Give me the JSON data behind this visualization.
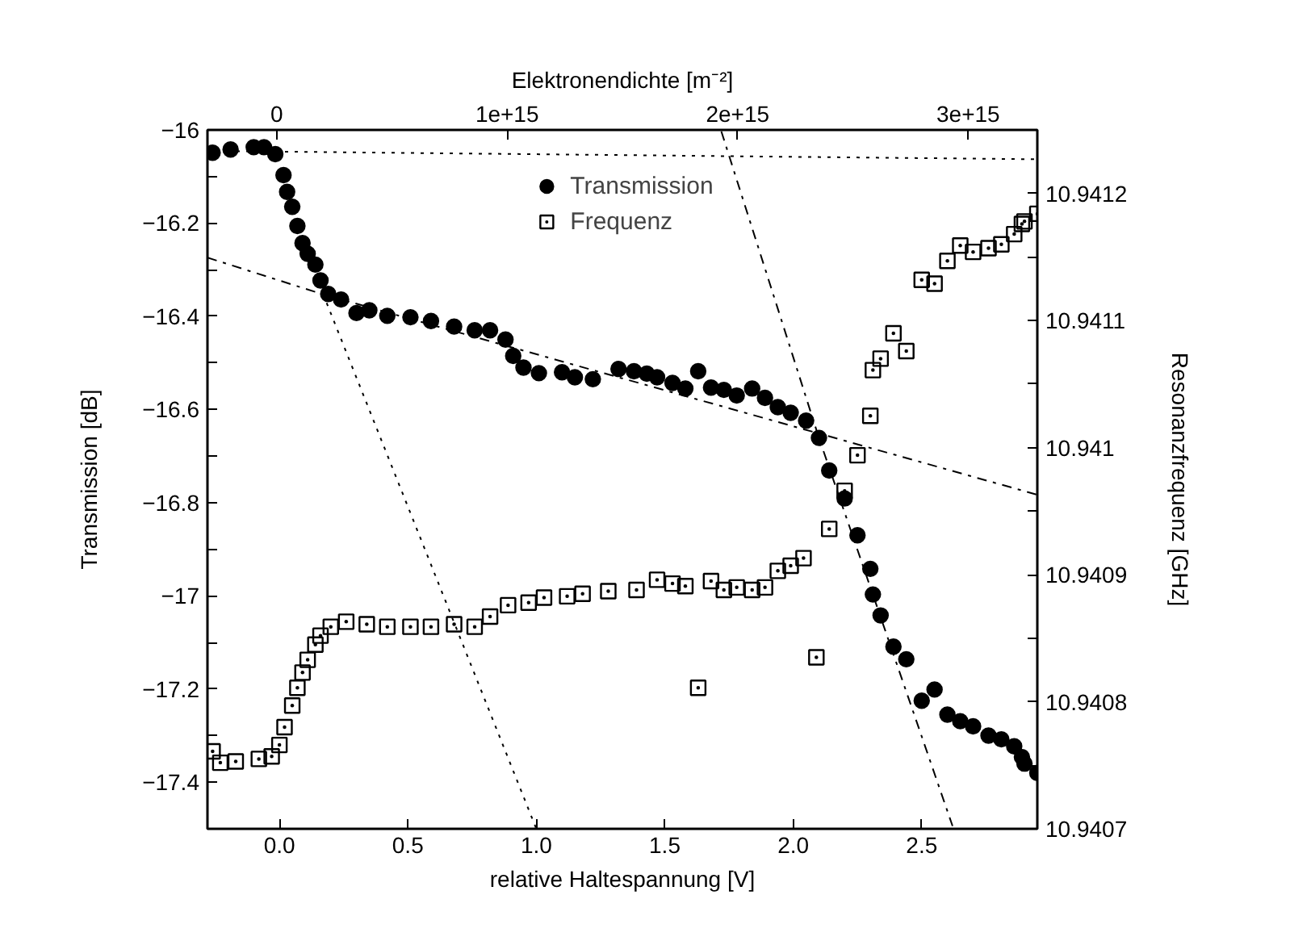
{
  "chart_data": {
    "type": "scatter",
    "xlabel": "relative Haltespannung [V]",
    "ylabel": "Transmission [dB]",
    "y2label": "Resonanzfrequenz [GHz]",
    "x2label": "Elektronendichte [m⁻²]",
    "xlim": [
      -0.28,
      2.95
    ],
    "xticks": [
      {
        "value": 0,
        "label": "0.0"
      },
      {
        "value": 0.5,
        "label": "0.5"
      },
      {
        "value": 1,
        "label": "1.0"
      },
      {
        "value": 1.5,
        "label": "1.5"
      },
      {
        "value": 2,
        "label": "2.0"
      },
      {
        "value": 2.5,
        "label": "2.5"
      }
    ],
    "x2lim": [
      -300000000000000.0,
      3300000000000000.0
    ],
    "x2ticks": [
      {
        "value": 0,
        "label": "0"
      },
      {
        "value": 1000000000000000.0,
        "label": "1e+15"
      },
      {
        "value": 2000000000000000.0,
        "label": "2e+15"
      },
      {
        "value": 3000000000000000.0,
        "label": "3e+15"
      }
    ],
    "ylim": [
      -17.5,
      -16
    ],
    "yticks": [
      {
        "value": -16,
        "label": "−16"
      },
      {
        "value": -16.1,
        "label": null
      },
      {
        "value": -16.2,
        "label": "−16.2"
      },
      {
        "value": -16.3,
        "label": null
      },
      {
        "value": -16.4,
        "label": "−16.4"
      },
      {
        "value": -16.5,
        "label": null
      },
      {
        "value": -16.6,
        "label": "−16.6"
      },
      {
        "value": -16.7,
        "label": null
      },
      {
        "value": -16.8,
        "label": "−16.8"
      },
      {
        "value": -16.9,
        "label": null
      },
      {
        "value": -17,
        "label": "−17"
      },
      {
        "value": -17.1,
        "label": null
      },
      {
        "value": -17.2,
        "label": "−17.2"
      },
      {
        "value": -17.3,
        "label": null
      },
      {
        "value": -17.4,
        "label": "−17.4"
      }
    ],
    "y2lim": [
      10.9407,
      10.94125
    ],
    "y2ticks": [
      10.9407,
      {
        "value": 10.94075,
        "label": null
      },
      10.9408,
      {
        "value": 10.94085,
        "label": null
      },
      10.9409,
      {
        "value": 10.94095,
        "label": null
      },
      10.941,
      {
        "value": 10.94105,
        "label": null
      },
      10.9411,
      {
        "value": 10.94115,
        "label": null
      },
      10.9412
    ],
    "legend": "top",
    "series": [
      {
        "name": "Transmission",
        "marker": "circle",
        "color": "#000000",
        "x": [
          -0.26,
          -0.19,
          -0.1,
          -0.06,
          -0.016,
          0.016,
          0.03,
          0.05,
          0.07,
          0.09,
          0.11,
          0.14,
          0.16,
          0.19,
          0.24,
          0.3,
          0.35,
          0.42,
          0.51,
          0.59,
          0.68,
          0.76,
          0.82,
          0.88,
          0.91,
          0.95,
          1.01,
          1.1,
          1.15,
          1.22,
          1.32,
          1.38,
          1.43,
          1.47,
          1.53,
          1.58,
          1.63,
          1.68,
          1.73,
          1.78,
          1.84,
          1.89,
          1.94,
          1.99,
          2.05,
          2.1,
          2.14,
          2.2,
          2.25,
          2.3,
          2.31,
          2.34,
          2.39,
          2.44,
          2.5,
          2.55,
          2.6,
          2.65,
          2.7,
          2.76,
          2.81,
          2.86,
          2.89,
          2.9,
          2.95
        ],
        "values": [
          -16.049,
          -16.042,
          -16.037,
          -16.037,
          -16.052,
          -16.097,
          -16.133,
          -16.165,
          -16.206,
          -16.243,
          -16.266,
          -16.289,
          -16.323,
          -16.352,
          -16.364,
          -16.393,
          -16.387,
          -16.399,
          -16.402,
          -16.41,
          -16.422,
          -16.43,
          -16.43,
          -16.45,
          -16.485,
          -16.51,
          -16.522,
          -16.52,
          -16.531,
          -16.535,
          -16.513,
          -16.518,
          -16.523,
          -16.531,
          -16.543,
          -16.555,
          -16.518,
          -16.553,
          -16.558,
          -16.57,
          -16.555,
          -16.575,
          -16.595,
          -16.607,
          -16.624,
          -16.661,
          -16.731,
          -16.791,
          -16.87,
          -16.942,
          -16.997,
          -17.042,
          -17.109,
          -17.136,
          -17.225,
          -17.201,
          -17.255,
          -17.269,
          -17.28,
          -17.3,
          -17.308,
          -17.323,
          -17.346,
          -17.36,
          -17.38
        ]
      },
      {
        "name": "Frequenz",
        "marker": "square",
        "axis": "y2",
        "color": "#000000",
        "x": [
          -0.26,
          -0.23,
          -0.17,
          -0.08,
          -0.03,
          0.0,
          0.02,
          0.05,
          0.07,
          0.09,
          0.11,
          0.14,
          0.16,
          0.2,
          0.26,
          0.34,
          0.42,
          0.51,
          0.59,
          0.68,
          0.76,
          0.82,
          0.89,
          0.97,
          1.03,
          1.12,
          1.18,
          1.28,
          1.39,
          1.47,
          1.53,
          1.58,
          1.63,
          1.68,
          1.73,
          1.78,
          1.84,
          1.89,
          1.94,
          1.99,
          2.04,
          2.09,
          2.14,
          2.2,
          2.25,
          2.3,
          2.31,
          2.34,
          2.39,
          2.44,
          2.5,
          2.55,
          2.6,
          2.65,
          2.7,
          2.76,
          2.81,
          2.86,
          2.89,
          2.9,
          2.95
        ],
        "values": [
          10.940761,
          10.940752,
          10.940753,
          10.940755,
          10.940757,
          10.940766,
          10.94078,
          10.940797,
          10.940811,
          10.940823,
          10.940833,
          10.940845,
          10.940852,
          10.940859,
          10.940863,
          10.940861,
          10.940859,
          10.940859,
          10.940859,
          10.940861,
          10.940859,
          10.940867,
          10.940876,
          10.940878,
          10.940882,
          10.940883,
          10.940885,
          10.940887,
          10.940888,
          10.940896,
          10.940893,
          10.940891,
          10.940811,
          10.940895,
          10.940888,
          10.94089,
          10.940888,
          10.94089,
          10.940903,
          10.940907,
          10.940913,
          10.940835,
          10.940936,
          10.940966,
          10.940994,
          10.941025,
          10.941061,
          10.94107,
          10.94109,
          10.941076,
          10.941132,
          10.941129,
          10.941147,
          10.941159,
          10.941154,
          10.941157,
          10.94116,
          10.941168,
          10.941176,
          10.941178,
          10.941184
        ]
      },
      {
        "type": "line",
        "line_style": "dotted",
        "color": "#000000",
        "x": [
          -0.28,
          2.95
        ],
        "values": [
          -16.045,
          -16.063
        ]
      },
      {
        "type": "line",
        "line_style": "dotted",
        "color": "#000000",
        "x": [
          0.17,
          1.0
        ],
        "values": [
          -16.352,
          -17.5
        ]
      },
      {
        "type": "line",
        "line_style": "dashdot",
        "color": "#000000",
        "x": [
          -0.28,
          0.17,
          2.95
        ],
        "values": [
          -16.274,
          -16.353,
          -16.783
        ]
      },
      {
        "type": "line",
        "line_style": "dashdot",
        "color": "#000000",
        "x": [
          1.72,
          2.1,
          2.62
        ],
        "values": [
          -16.003,
          -16.661,
          -17.494
        ]
      }
    ]
  }
}
